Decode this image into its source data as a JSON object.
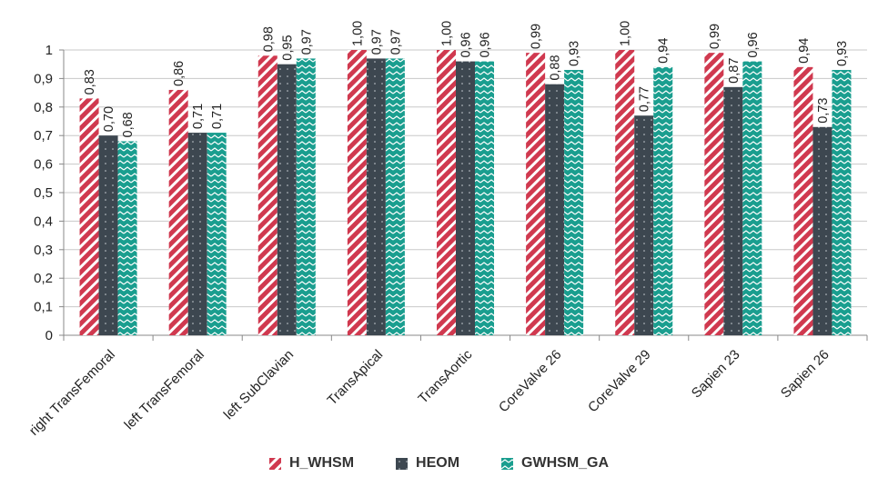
{
  "chart_data": {
    "type": "bar",
    "categories": [
      "right TransFemoral",
      "left TransFemoral",
      "left SubClavian",
      "TransApical",
      "TransAortic",
      "CoreValve 26",
      "CoreValve 29",
      "Sapien 23",
      "Sapien 26"
    ],
    "series": [
      {
        "name": "H_WHSM",
        "values": [
          0.83,
          0.86,
          0.98,
          1.0,
          1.0,
          0.99,
          1.0,
          0.99,
          0.94
        ],
        "labels": [
          "0,83",
          "0,86",
          "0,98",
          "1,00",
          "1,00",
          "0,99",
          "1,00",
          "0,99",
          "0,94"
        ],
        "color": "#d0394f",
        "pattern": "diagonal-stripes"
      },
      {
        "name": "HEOM",
        "values": [
          0.7,
          0.71,
          0.95,
          0.97,
          0.96,
          0.88,
          0.77,
          0.87,
          0.73
        ],
        "labels": [
          "0,70",
          "0,71",
          "0,95",
          "0,97",
          "0,96",
          "0,88",
          "0,77",
          "0,87",
          "0,73"
        ],
        "color": "#3d4750",
        "pattern": "dots"
      },
      {
        "name": "GWHSM_GA",
        "values": [
          0.68,
          0.71,
          0.97,
          0.97,
          0.96,
          0.93,
          0.94,
          0.96,
          0.93
        ],
        "labels": [
          "0,68",
          "0,71",
          "0,97",
          "0,97",
          "0,96",
          "0,93",
          "0,94",
          "0,96",
          "0,93"
        ],
        "color": "#1a9e8f",
        "pattern": "zigzag"
      }
    ],
    "yticks": [
      "0",
      "0,1",
      "0,2",
      "0,3",
      "0,4",
      "0,5",
      "0,6",
      "0,7",
      "0,8",
      "0,9",
      "1"
    ],
    "ylim": [
      0,
      1
    ],
    "grid": true,
    "legend_position": "bottom"
  },
  "legend": {
    "h_whsm": "H_WHSM",
    "heom": "HEOM",
    "gwhsm_ga": "GWHSM_GA"
  }
}
